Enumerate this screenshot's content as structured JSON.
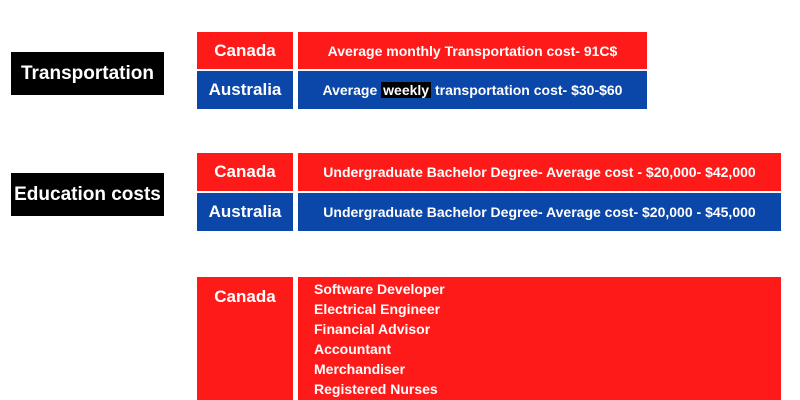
{
  "transportation": {
    "label": "Transportation",
    "canada": {
      "country": "Canada",
      "text": "Average monthly Transportation cost- 91C$"
    },
    "australia": {
      "country": "Australia",
      "text_before": "Average ",
      "text_highlight": "weekly",
      "text_after": " transportation cost- $30-$60"
    }
  },
  "education": {
    "label": "Education costs",
    "canada": {
      "country": "Canada",
      "text": "Undergraduate Bachelor Degree- Average cost - $20,000- $42,000"
    },
    "australia": {
      "country": "Australia",
      "text": "Undergraduate Bachelor Degree- Average cost- $20,000 - $45,000"
    }
  },
  "jobs": {
    "country": "Canada",
    "items": [
      "Software Developer",
      "Electrical Engineer",
      "Financial Advisor",
      "Accountant",
      "Merchandiser",
      "Registered Nurses"
    ]
  },
  "colors": {
    "red": "#ff1a1a",
    "blue": "#0a47a8",
    "black": "#000000"
  }
}
